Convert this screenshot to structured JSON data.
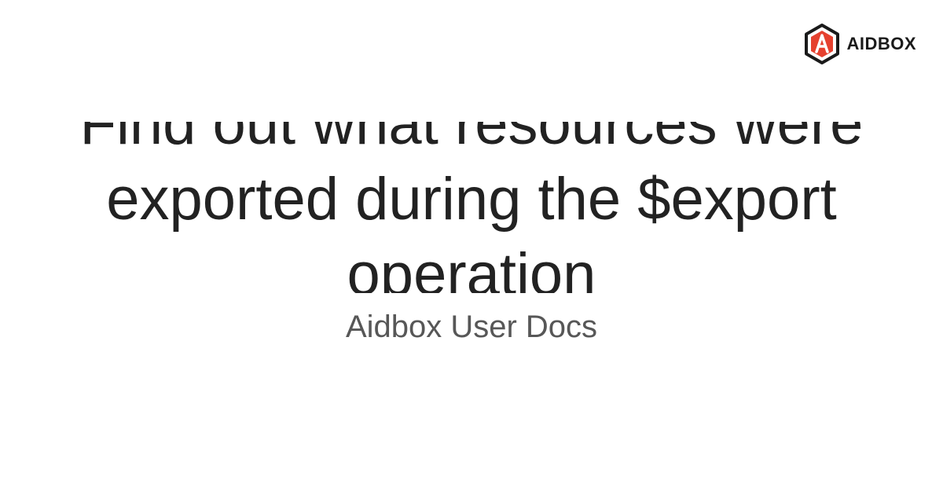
{
  "brand": {
    "name": "AIDBOX",
    "logo_icon": "aidbox-hexagon-logo-icon",
    "accent": "#e5412f",
    "dark": "#1a1a1a"
  },
  "page": {
    "title": "Find out what resources were exported during the $export operation",
    "site": "Aidbox User Docs"
  }
}
